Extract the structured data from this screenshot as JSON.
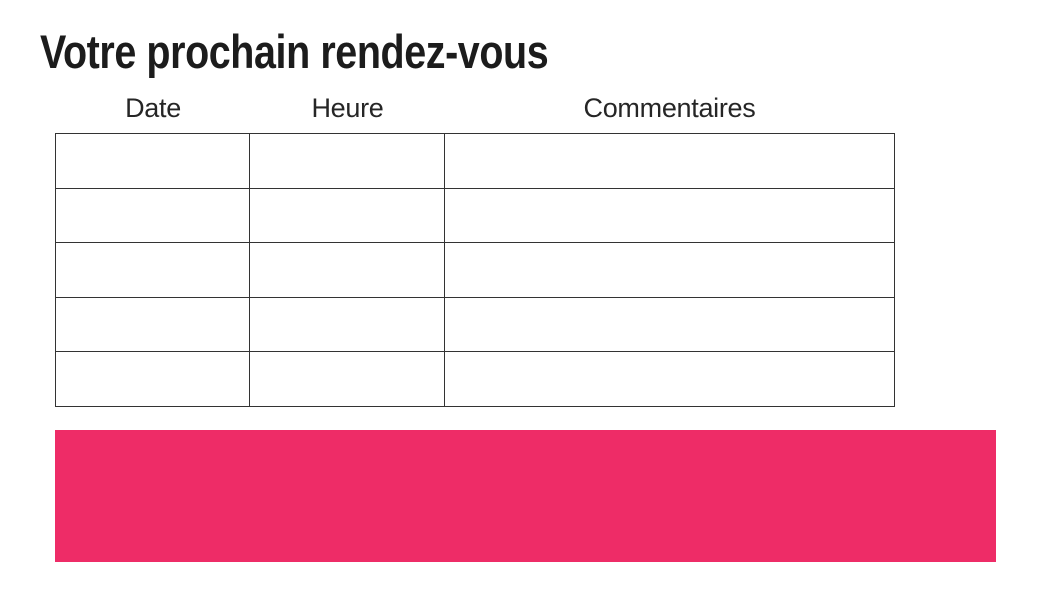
{
  "page": {
    "title": "Votre prochain rendez-vous"
  },
  "table": {
    "columns": [
      {
        "label": "Date"
      },
      {
        "label": "Heure"
      },
      {
        "label": "Commentaires"
      }
    ],
    "rows": [
      [
        "",
        "",
        ""
      ],
      [
        "",
        "",
        ""
      ],
      [
        "",
        "",
        ""
      ],
      [
        "",
        "",
        ""
      ],
      [
        "",
        "",
        ""
      ]
    ]
  },
  "banner": {
    "text": "",
    "color": "#EE2C67"
  },
  "colors": {
    "text": "#1C1C1C",
    "table_border": "#333333",
    "accent_pink": "#EE2C67",
    "background": "#FFFFFF"
  }
}
